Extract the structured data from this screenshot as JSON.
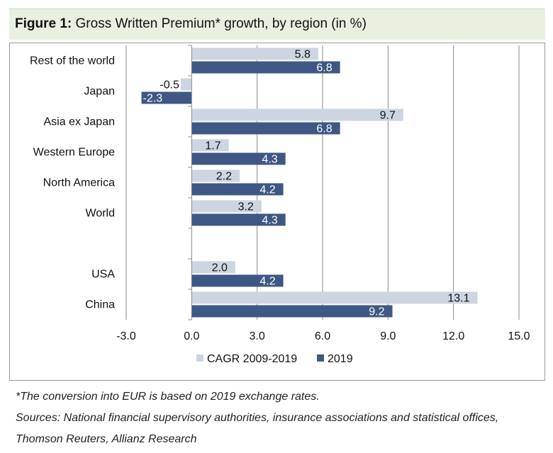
{
  "title": {
    "label": "Figure 1:",
    "text": "Gross Written Premium* growth, by region (in %)"
  },
  "footnotes": [
    "*The conversion into EUR is based on 2019 exchange rates.",
    "Sources: National financial supervisory authorities, insurance associations and statistical offices,",
    "Thomson Reuters, Allianz Research"
  ],
  "chart_data": {
    "type": "bar",
    "orientation": "horizontal",
    "categories": [
      "Rest of the world",
      "Japan",
      "Asia ex Japan",
      "Western Europe",
      "North America",
      "World",
      "",
      "USA",
      "China"
    ],
    "series": [
      {
        "name": "CAGR 2009-2019",
        "color": "#ccd5e0",
        "values": [
          5.8,
          -0.5,
          9.7,
          1.7,
          2.2,
          3.2,
          null,
          2.0,
          13.1
        ]
      },
      {
        "name": "2019",
        "color": "#3f5784",
        "values": [
          6.8,
          -2.3,
          6.8,
          4.3,
          4.2,
          4.3,
          null,
          4.2,
          9.2
        ]
      }
    ],
    "xlim": [
      -3.0,
      15.0
    ],
    "xticks": [
      "-3.0",
      "0.0",
      "3.0",
      "6.0",
      "9.0",
      "12.0",
      "15.0"
    ],
    "grid": "vertical",
    "legend": "bottom"
  }
}
